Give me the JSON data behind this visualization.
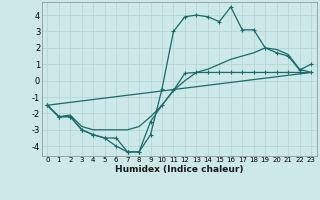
{
  "xlabel": "Humidex (Indice chaleur)",
  "background_color": "#cce8e8",
  "grid_color": "#b8d4d4",
  "line_color": "#1a6b6b",
  "xlim": [
    -0.5,
    23.5
  ],
  "ylim": [
    -4.6,
    4.8
  ],
  "xtick_vals": [
    0,
    1,
    2,
    3,
    4,
    5,
    6,
    7,
    8,
    9,
    10,
    11,
    12,
    13,
    14,
    15,
    16,
    17,
    18,
    19,
    20,
    21,
    22,
    23
  ],
  "ytick_vals": [
    -4,
    -3,
    -2,
    -1,
    0,
    1,
    2,
    3,
    4
  ],
  "curve1_x": [
    0,
    1,
    2,
    3,
    4,
    5,
    6,
    7,
    8,
    9,
    10,
    11,
    12,
    13,
    14,
    15,
    16,
    17,
    18,
    19,
    20,
    21,
    22,
    23
  ],
  "curve1_y": [
    -1.5,
    -2.2,
    -2.2,
    -3.0,
    -3.3,
    -3.5,
    -4.0,
    -4.35,
    -4.35,
    -3.3,
    -0.5,
    3.0,
    3.9,
    4.0,
    3.9,
    3.6,
    4.5,
    3.1,
    3.1,
    2.0,
    1.7,
    1.5,
    0.65,
    1.0
  ],
  "curve2_x": [
    0,
    1,
    2,
    3,
    4,
    5,
    6,
    7,
    8,
    9,
    10,
    11,
    12,
    13,
    14,
    15,
    16,
    17,
    18,
    19,
    20,
    21,
    22,
    23
  ],
  "curve2_y": [
    -1.5,
    -2.2,
    -2.2,
    -3.0,
    -3.3,
    -3.5,
    -3.5,
    -4.35,
    -4.35,
    -2.5,
    -1.5,
    -0.6,
    0.45,
    0.5,
    0.5,
    0.5,
    0.5,
    0.5,
    0.5,
    0.5,
    0.5,
    0.5,
    0.5,
    0.5
  ],
  "curve3_x": [
    0,
    23
  ],
  "curve3_y": [
    -1.5,
    0.5
  ],
  "curve4_x": [
    0,
    1,
    2,
    3,
    4,
    5,
    6,
    7,
    8,
    9,
    10,
    11,
    12,
    13,
    14,
    15,
    16,
    17,
    18,
    19,
    20,
    21,
    22,
    23
  ],
  "curve4_y": [
    -1.5,
    -2.2,
    -2.1,
    -2.8,
    -3.0,
    -3.0,
    -3.0,
    -3.0,
    -2.8,
    -2.2,
    -1.5,
    -0.6,
    0.0,
    0.5,
    0.7,
    1.0,
    1.3,
    1.5,
    1.7,
    2.0,
    1.9,
    1.6,
    0.7,
    0.5
  ]
}
